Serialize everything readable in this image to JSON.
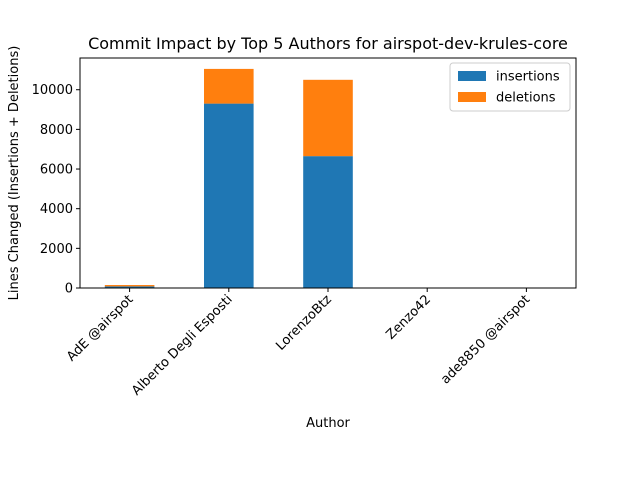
{
  "chart_data": {
    "type": "bar",
    "stacked": true,
    "title": "Commit Impact by Top 5 Authors for airspot-dev-krules-core",
    "xlabel": "Author",
    "ylabel": "Lines Changed (Insertions + Deletions)",
    "categories": [
      "AdE @airspot",
      "Alberto Degli Esposti",
      "LorenzoBtz",
      "Zenzo42",
      "ade8850 @airspot"
    ],
    "series": [
      {
        "name": "insertions",
        "color": "#1f77b4",
        "values": [
          80,
          9300,
          6650,
          0,
          0
        ]
      },
      {
        "name": "deletions",
        "color": "#ff7f0e",
        "values": [
          70,
          1750,
          3850,
          0,
          0
        ]
      }
    ],
    "ylim": [
      0,
      11600
    ],
    "yticks": [
      0,
      2000,
      4000,
      6000,
      8000,
      10000
    ],
    "ytick_labels": [
      "0",
      "2000",
      "4000",
      "6000",
      "8000",
      "10000"
    ],
    "legend_position": "top-right",
    "grid": false
  }
}
